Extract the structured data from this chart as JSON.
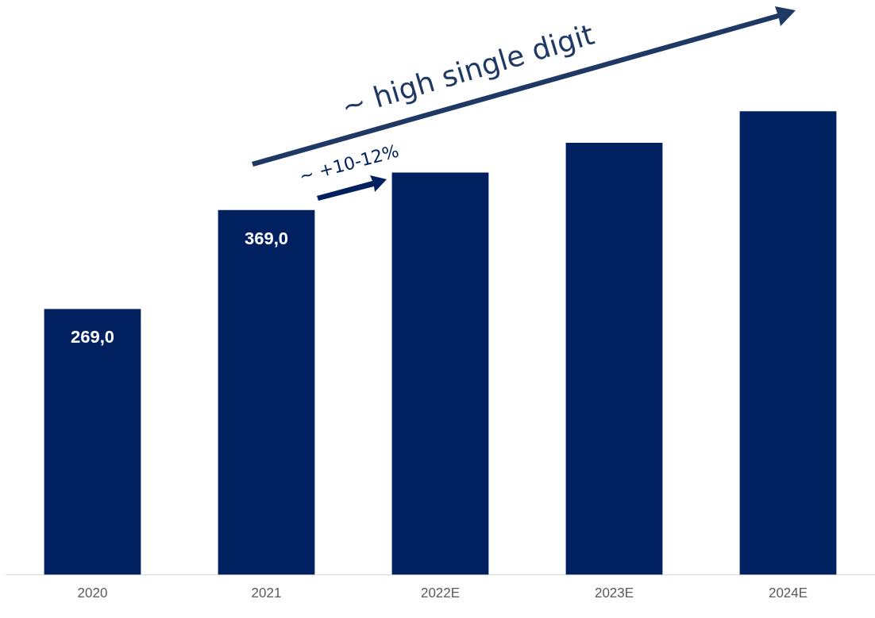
{
  "chart_data": {
    "type": "bar",
    "categories": [
      "2020",
      "2021",
      "2022E",
      "2023E",
      "2024E"
    ],
    "values": [
      269,
      369,
      407,
      437,
      469
    ],
    "value_labels": [
      "269,0",
      "369,0",
      null,
      null,
      null
    ],
    "color": "#002060",
    "annotations": [
      "~ high single digit",
      "~ +10-12%"
    ],
    "grid": false,
    "legend": false
  }
}
